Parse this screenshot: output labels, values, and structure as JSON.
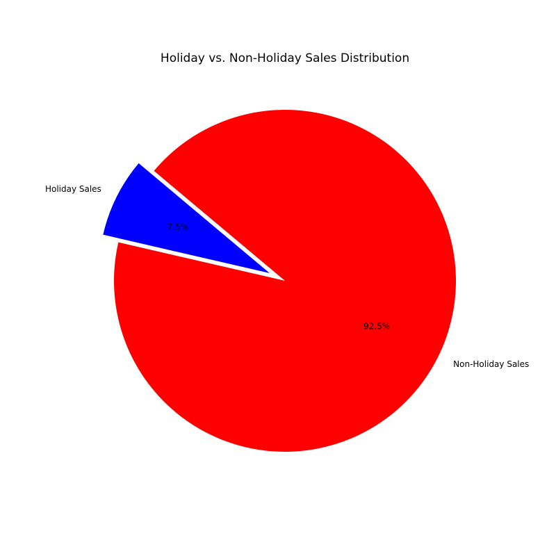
{
  "chart_data": {
    "type": "pie",
    "title": "Holiday vs. Non-Holiday Sales Distribution",
    "categories": [
      "Holiday Sales",
      "Non-Holiday Sales"
    ],
    "values": [
      7.5,
      92.5
    ],
    "percent_labels": [
      "7.5%",
      "92.5%"
    ],
    "colors": [
      "#0000ff",
      "#ff0000"
    ],
    "exploded": [
      true,
      false
    ],
    "legend": "none"
  }
}
